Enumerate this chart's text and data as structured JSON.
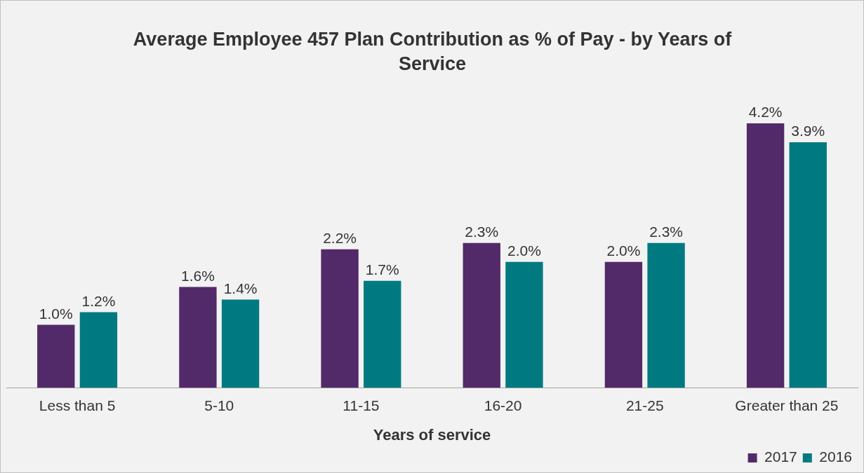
{
  "chart_data": {
    "type": "bar",
    "title": "Average Employee 457 Plan Contribution as % of Pay - by Years of Service",
    "xlabel": "Years of service",
    "categories": [
      "Less than 5",
      "5-10",
      "11-15",
      "16-20",
      "21-25",
      "Greater than 25"
    ],
    "series": [
      {
        "name": "2017",
        "color": "#532a69",
        "values": [
          1.0,
          1.6,
          2.2,
          2.3,
          2.0,
          4.2
        ],
        "value_labels": [
          "1.0%",
          "1.6%",
          "2.2%",
          "2.3%",
          "2.0%",
          "4.2%"
        ]
      },
      {
        "name": "2016",
        "color": "#007a80",
        "values": [
          1.2,
          1.4,
          1.7,
          2.0,
          2.3,
          3.9
        ],
        "value_labels": [
          "1.2%",
          "1.4%",
          "1.7%",
          "2.0%",
          "2.3%",
          "3.9%"
        ]
      }
    ],
    "grid": false,
    "legend": "bottom right"
  }
}
